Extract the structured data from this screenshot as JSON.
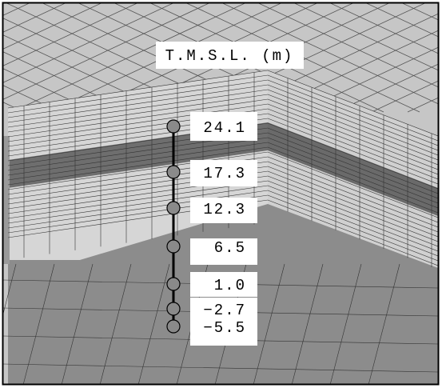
{
  "title": "T.M.S.L. (m)",
  "levels": [
    "24.1",
    "17.3",
    "12.3",
    "6.5",
    "1.0",
    "−2.7",
    "−5.5"
  ]
}
